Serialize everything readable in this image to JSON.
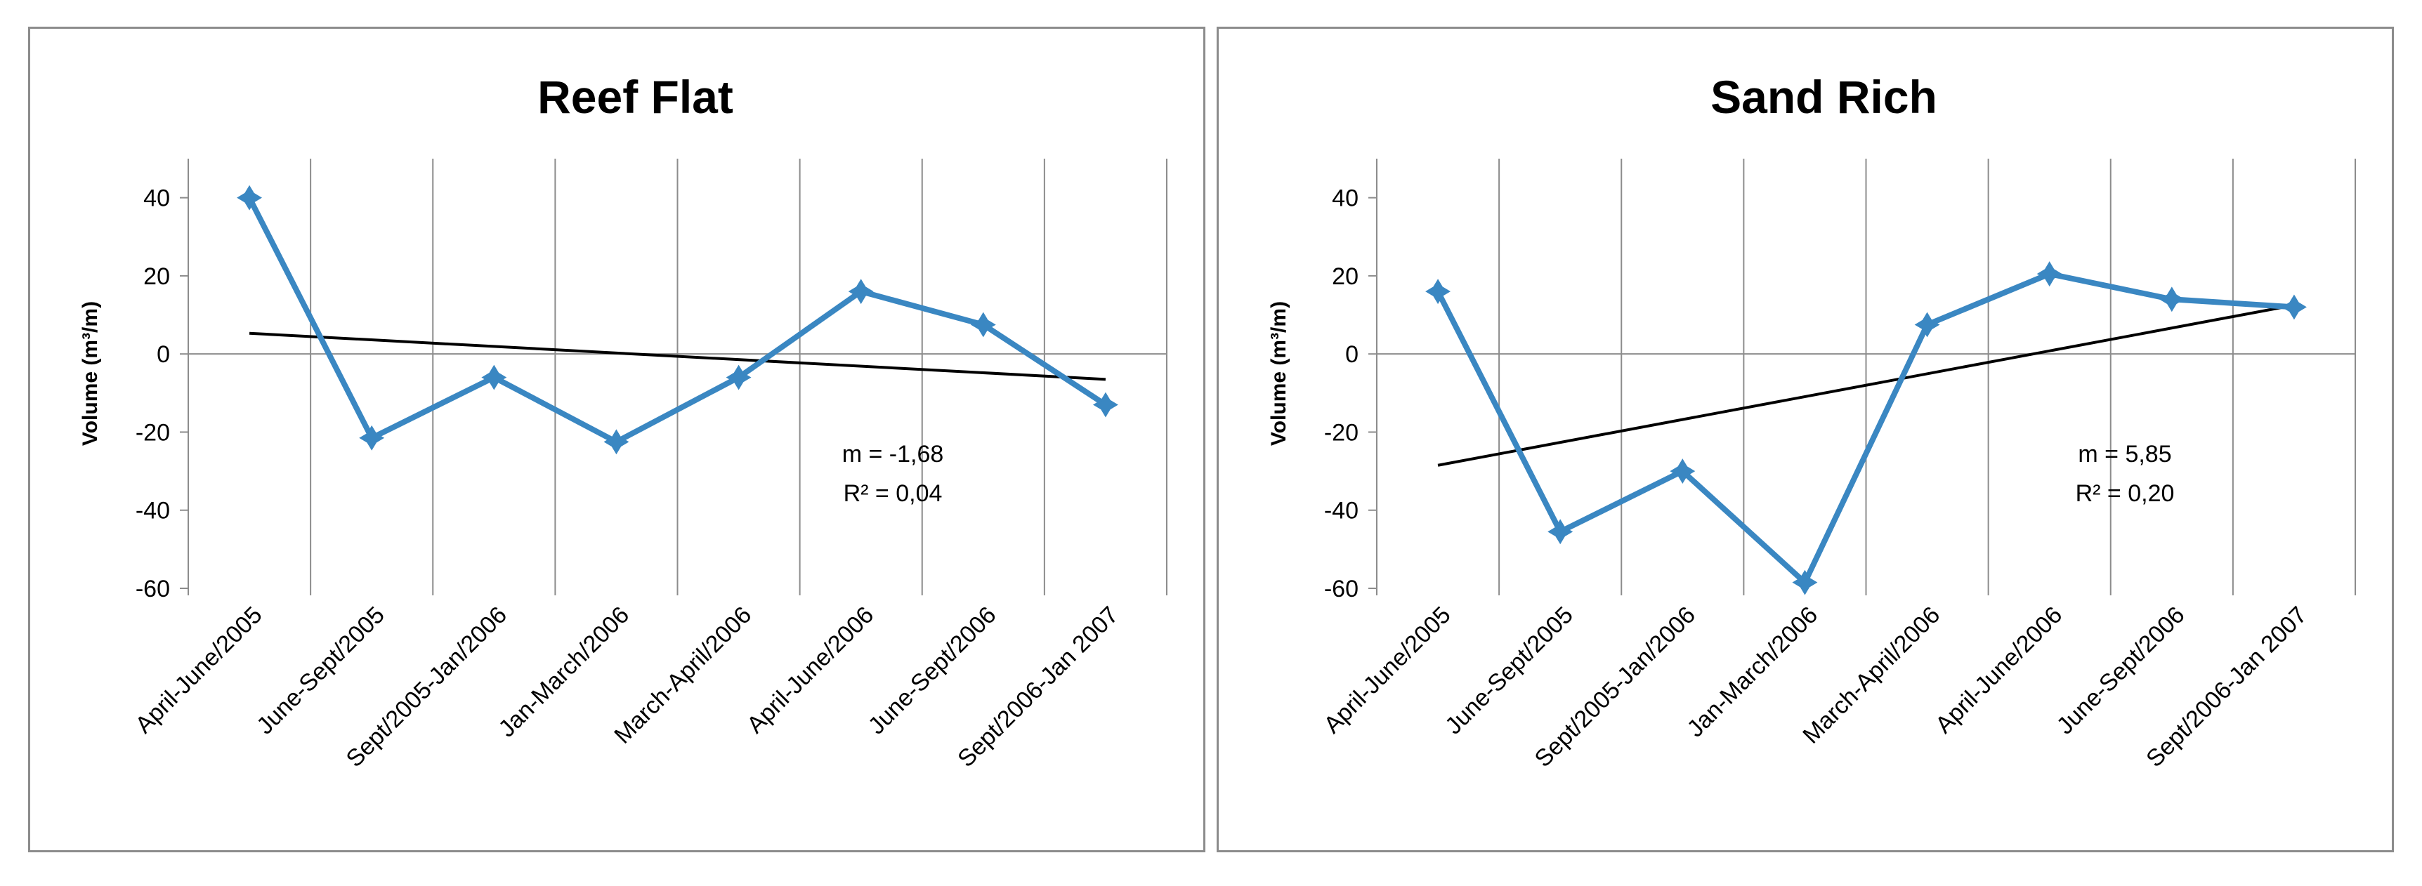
{
  "chart_data": [
    {
      "type": "line",
      "title": "Reef Flat",
      "ylabel": "Volume (m³/m)",
      "xlabel": "",
      "ylim": [
        -60,
        50
      ],
      "yticks": [
        40,
        20,
        0,
        -20,
        -40,
        -60
      ],
      "categories": [
        "April-June/2005",
        "June-Sept/2005",
        "Sept/2005-Jan/2006",
        "Jan-March/2006",
        "March-April/2006",
        "April-June/2006",
        "June-Sept/2006",
        "Sept/2006-Jan 2007"
      ],
      "series": [
        {
          "name": "Volume",
          "values": [
            40,
            -21.5,
            -6,
            -22.5,
            -6,
            16,
            7.5,
            -13
          ]
        }
      ],
      "trendline": {
        "start": 5.3,
        "end": -6.5
      },
      "annotation": {
        "slope": "m = -1,68",
        "r2": "R² = 0,04"
      },
      "grid": true,
      "colors": {
        "series": "#3a87c2",
        "trend": "#000000",
        "grid": "#8c8c8c"
      }
    },
    {
      "type": "line",
      "title": "Sand Rich",
      "ylabel": "Volume (m³/m)",
      "xlabel": "",
      "ylim": [
        -60,
        50
      ],
      "yticks": [
        40,
        20,
        0,
        -20,
        -40,
        -60
      ],
      "categories": [
        "April-June/2005",
        "June-Sept/2005",
        "Sept/2005-Jan/2006",
        "Jan-March/2006",
        "March-April/2006",
        "April-June/2006",
        "June-Sept/2006",
        "Sept/2006-Jan 2007"
      ],
      "series": [
        {
          "name": "Volume",
          "values": [
            16,
            -45.5,
            -30,
            -58.5,
            7.5,
            20.5,
            14,
            12
          ]
        }
      ],
      "trendline": {
        "start": -28.5,
        "end": 12.5
      },
      "annotation": {
        "slope": "m = 5,85",
        "r2": "R² = 0,20"
      },
      "grid": true,
      "colors": {
        "series": "#3a87c2",
        "trend": "#000000",
        "grid": "#8c8c8c"
      }
    }
  ]
}
